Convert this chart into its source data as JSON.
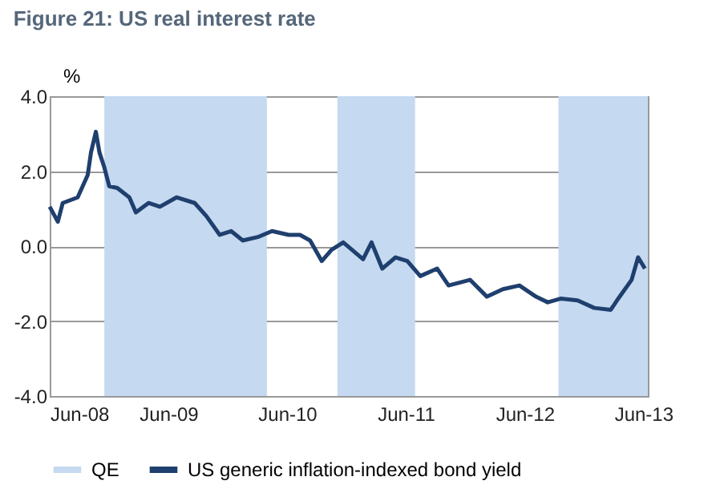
{
  "chart_data": {
    "type": "line",
    "title": "Figure 21: US real interest rate",
    "ylabel": "%",
    "x": [
      "2008-06-01",
      "2008-06-26",
      "2008-07-11",
      "2008-08-26",
      "2008-09-26",
      "2008-10-06",
      "2008-10-21",
      "2008-11-01",
      "2008-11-16",
      "2008-12-01",
      "2008-12-26",
      "2009-02-01",
      "2009-02-21",
      "2009-04-01",
      "2009-05-06",
      "2009-06-26",
      "2009-08-21",
      "2009-09-26",
      "2009-11-06",
      "2009-12-11",
      "2010-01-16",
      "2010-03-06",
      "2010-04-16",
      "2010-06-06",
      "2010-07-11",
      "2010-08-11",
      "2010-09-16",
      "2010-10-16",
      "2010-11-21",
      "2011-01-21",
      "2011-02-16",
      "2011-03-21",
      "2011-05-01",
      "2011-06-06",
      "2011-07-16",
      "2011-09-06",
      "2011-10-11",
      "2011-12-16",
      "2012-02-06",
      "2012-03-26",
      "2012-05-16",
      "2012-07-06",
      "2012-08-11",
      "2012-09-21",
      "2012-11-11",
      "2013-01-01",
      "2013-02-21",
      "2013-03-16",
      "2013-04-26",
      "2013-05-16",
      "2013-06-06"
    ],
    "series": [
      {
        "name": "US generic inflation-indexed bond yield",
        "color": "#1f3f6e",
        "values": [
          1.05,
          0.65,
          1.15,
          1.3,
          1.9,
          2.5,
          3.05,
          2.5,
          2.1,
          1.6,
          1.55,
          1.3,
          0.9,
          1.15,
          1.05,
          1.3,
          1.15,
          0.8,
          0.3,
          0.4,
          0.15,
          0.25,
          0.4,
          0.3,
          0.3,
          0.15,
          -0.4,
          -0.1,
          0.1,
          -0.35,
          0.1,
          -0.6,
          -0.3,
          -0.4,
          -0.8,
          -0.6,
          -1.05,
          -0.9,
          -1.35,
          -1.15,
          -1.05,
          -1.35,
          -1.5,
          -1.4,
          -1.45,
          -1.65,
          -1.7,
          -1.4,
          -0.9,
          -0.3,
          -0.6
        ]
      }
    ],
    "bands": [
      {
        "axis": "x",
        "from": "2008-11-16",
        "to": "2010-03-31",
        "label": "QE",
        "color": "#c5d9f0"
      },
      {
        "axis": "x",
        "from": "2010-11-03",
        "to": "2011-06-30",
        "color": "#c5d9f0"
      },
      {
        "axis": "x",
        "from": "2012-09-13",
        "to": "2013-06-15",
        "color": "#c5d9f0"
      }
    ],
    "xlim": [
      "2008-06-01",
      "2013-06-15"
    ],
    "xticks": [
      {
        "value": "2008-06-01",
        "label": "Jun-08"
      },
      {
        "value": "2009-06-01",
        "label": "Jun-09"
      },
      {
        "value": "2010-06-01",
        "label": "Jun-10"
      },
      {
        "value": "2011-06-01",
        "label": "Jun-11"
      },
      {
        "value": "2012-06-01",
        "label": "Jun-12"
      },
      {
        "value": "2013-06-01",
        "label": "Jun-13"
      }
    ],
    "ylim": [
      -4,
      4
    ],
    "yticks": [
      {
        "value": -4,
        "label": "-4.0"
      },
      {
        "value": -2,
        "label": "-2.0"
      },
      {
        "value": 0,
        "label": "0.0"
      },
      {
        "value": 2,
        "label": "2.0"
      },
      {
        "value": 4,
        "label": "4.0"
      }
    ],
    "grid": "y",
    "legend": "bottom",
    "marker": "none",
    "line_style": "solid"
  }
}
